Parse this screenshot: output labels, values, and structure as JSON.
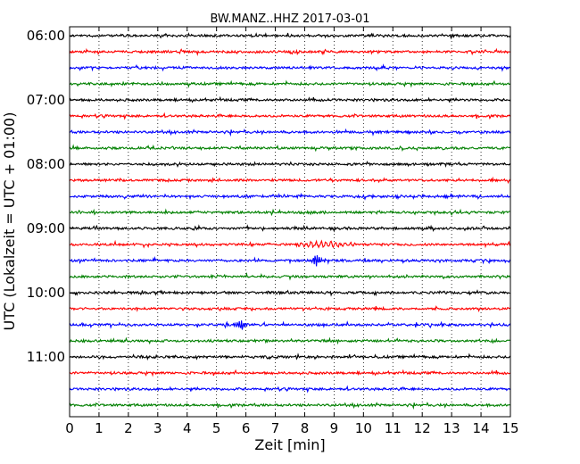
{
  "chart_data": {
    "type": "line",
    "title": "BW.MANZ..HHZ 2017-03-01",
    "xlabel": "Zeit  [min]",
    "ylabel": "UTC (Lokalzeit = UTC + 01:00)",
    "xlim": [
      0,
      15
    ],
    "x_ticks": [
      0,
      1,
      2,
      3,
      4,
      5,
      6,
      7,
      8,
      9,
      10,
      11,
      12,
      13,
      14,
      15
    ],
    "x_tick_labels": [
      "0",
      "1",
      "2",
      "3",
      "4",
      "5",
      "6",
      "7",
      "8",
      "9",
      "10",
      "11",
      "12",
      "13",
      "14",
      "15"
    ],
    "grid_x": true,
    "grid_style": "dotted",
    "y_tick_labels": [
      "06:00",
      "07:00",
      "08:00",
      "09:00",
      "10:00",
      "11:00"
    ],
    "trace_colors": [
      "#000000",
      "#ff0000",
      "#0000ff",
      "#008000"
    ],
    "trace_minutes": 15,
    "trace_start_times": [
      "06:00",
      "06:15",
      "06:30",
      "06:45",
      "07:00",
      "07:15",
      "07:30",
      "07:45",
      "08:00",
      "08:15",
      "08:30",
      "08:45",
      "09:00",
      "09:15",
      "09:30",
      "09:45",
      "10:00",
      "10:15",
      "10:30",
      "10:45",
      "11:00",
      "11:15",
      "11:30",
      "11:45"
    ],
    "events": [
      {
        "trace": "09:15",
        "start_min": 7.8,
        "end_min": 10.6,
        "peak_min": 8.7,
        "note": "oscillating signal"
      },
      {
        "trace": "09:30",
        "start_min": 8.2,
        "end_min": 8.7,
        "peak_min": 8.4,
        "note": "spike"
      },
      {
        "trace": "10:30",
        "start_min": 5.6,
        "end_min": 6.1,
        "peak_min": 5.85,
        "note": "spike"
      }
    ]
  }
}
